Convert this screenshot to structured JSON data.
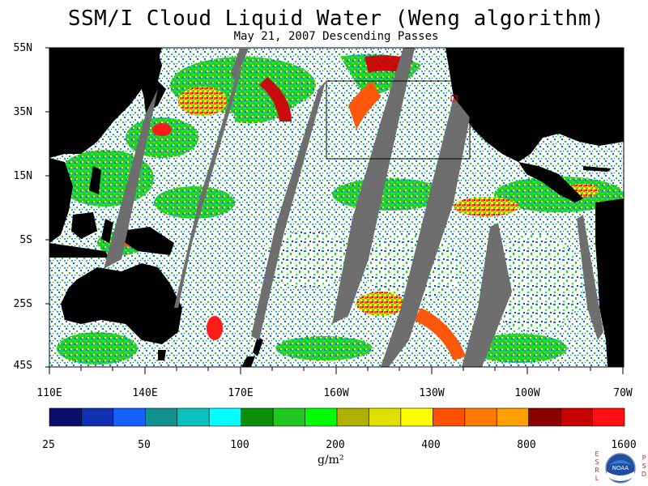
{
  "title": "SSM/I Cloud Liquid Water (Weng algorithm)",
  "subtitle": "May 21, 2007  Descending Passes",
  "lat_labels": [
    "55N",
    "35N",
    "15N",
    "5S",
    "25S",
    "45S"
  ],
  "lon_labels": [
    "110E",
    "140E",
    "170E",
    "160W",
    "130W",
    "100W",
    "70W"
  ],
  "colorbar": {
    "tick_labels": [
      "25",
      "50",
      "100",
      "200",
      "400",
      "800",
      "1600"
    ],
    "units_label": "g/m²",
    "colors": [
      "#0a0f6e",
      "#0f30b0",
      "#1660ff",
      "#10918f",
      "#0dc0c0",
      "#00ffff",
      "#0a8f0a",
      "#1ec81e",
      "#00ff00",
      "#b0b000",
      "#e0e000",
      "#ffff00",
      "#ff5000",
      "#ff7800",
      "#ffa000",
      "#8c0000",
      "#c80000",
      "#ff1010"
    ]
  },
  "map": {
    "land_color": "#000000",
    "no_data_color": "#6e6e6e",
    "ocean_clear_color": "#ffffff",
    "domain": {
      "lon_start": "110E",
      "lon_end": "70W",
      "lat_top": "55N",
      "lat_bottom": "45S"
    }
  },
  "logo": {
    "left_letters": [
      "E",
      "S",
      "R",
      "L"
    ],
    "right_letters": [
      "P",
      "S",
      "D"
    ],
    "center_text": "NOAA"
  }
}
